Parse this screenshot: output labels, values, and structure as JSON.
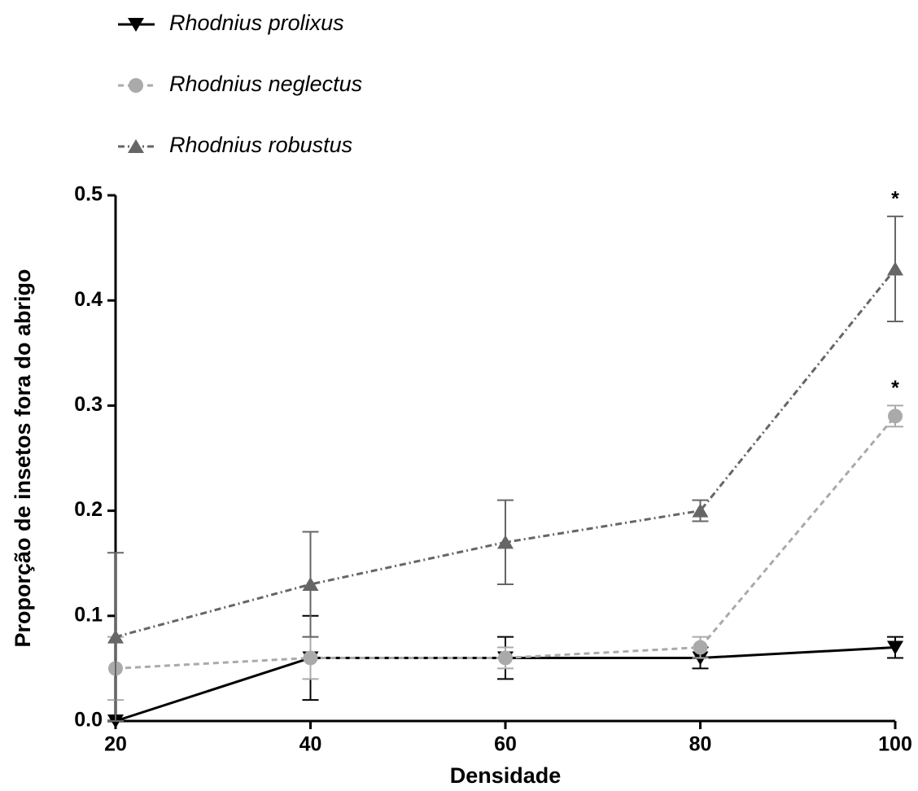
{
  "chart_data": {
    "type": "line",
    "x_label": "Densidade",
    "y_label": "Proporção de insetos fora do abrigo",
    "x": [
      20,
      40,
      60,
      80,
      100
    ],
    "xlim": [
      20,
      100
    ],
    "xticks": [
      20,
      40,
      60,
      80,
      100
    ],
    "ylim": [
      0,
      0.5
    ],
    "yticks": [
      {
        "value": 0,
        "label": "0.0"
      },
      0.1,
      0.2,
      0.3,
      0.4,
      0.5
    ],
    "legend": "top-left",
    "series": [
      {
        "name": "Rhodnius prolixus",
        "color": "#000000",
        "marker": "triangle-down",
        "line_style": "solid",
        "values": [
          0,
          0.06,
          0.06,
          0.06,
          0.07
        ],
        "errors": [
          0,
          0.04,
          0.02,
          0.01,
          0.01
        ]
      },
      {
        "name": "Rhodnius neglectus",
        "color": "#aaaaaa",
        "marker": "circle",
        "line_style": "dashed",
        "values": [
          0.05,
          0.06,
          0.06,
          0.07,
          0.29
        ],
        "errors": [
          0.03,
          0.02,
          0.01,
          0.01,
          0.01
        ]
      },
      {
        "name": "Rhodnius robustus",
        "color": "#666666",
        "marker": "triangle-up",
        "line_style": "dashdot",
        "values": [
          0.08,
          0.13,
          0.17,
          0.2,
          0.43
        ],
        "errors": [
          0.08,
          0.05,
          0.04,
          0.01,
          0.05
        ]
      }
    ],
    "annotations": [
      {
        "text": "*",
        "x": 100,
        "y": 0.5
      },
      {
        "text": "*",
        "x": 100,
        "y": 0.32
      }
    ]
  }
}
